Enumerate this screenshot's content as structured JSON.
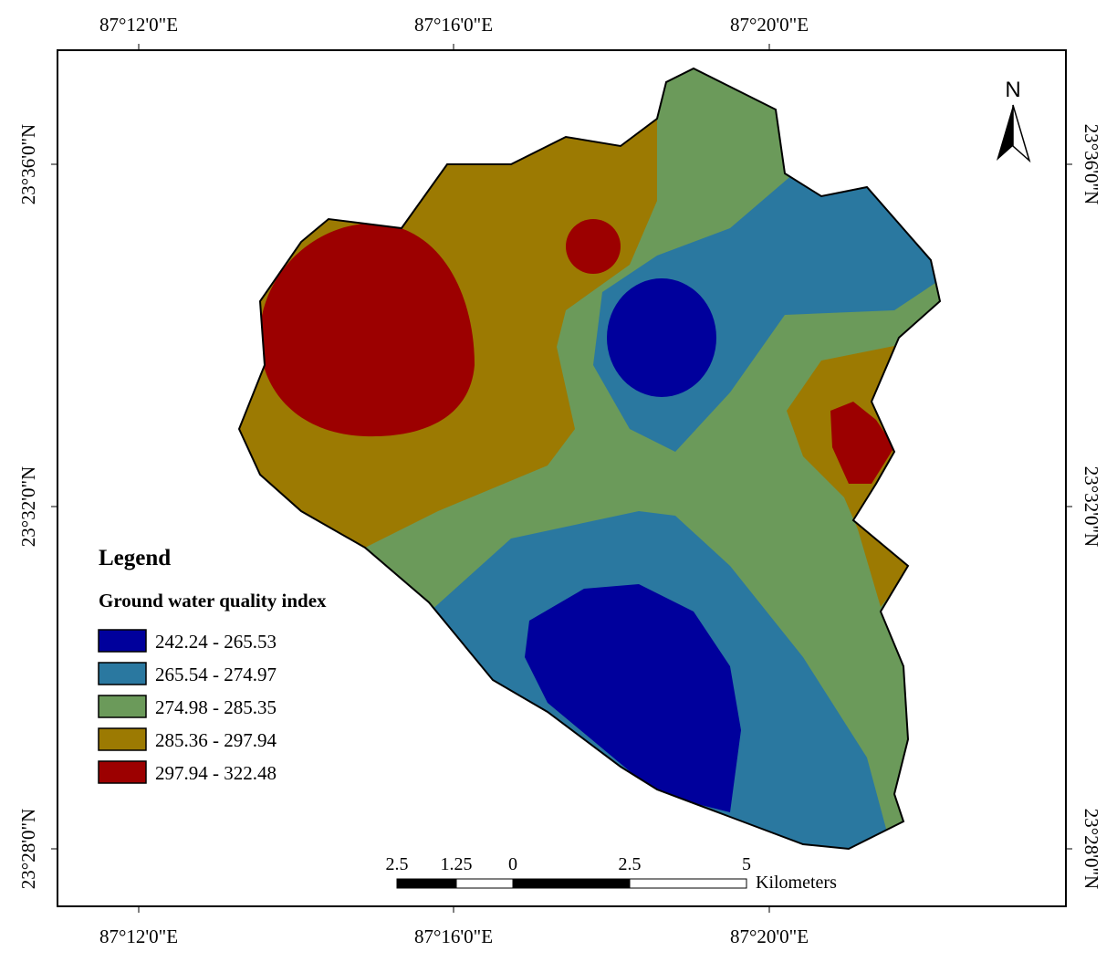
{
  "map": {
    "top_labels": [
      "87°12'0\"E",
      "87°16'0\"E",
      "87°20'0\"E"
    ],
    "bottom_labels": [
      "87°12'0\"E",
      "87°16'0\"E",
      "87°20'0\"E"
    ],
    "left_labels": [
      "23°36'0\"N",
      "23°32'0\"N",
      "23°28'0\"N"
    ],
    "right_labels": [
      "23°36'0\"N",
      "23°32'0\"N",
      "23°28'0\"N"
    ],
    "north": "N",
    "legend": {
      "title": "Legend",
      "subtitle": "Ground water quality index",
      "classes": [
        {
          "label": "242.24 - 265.53",
          "color": "#00009c"
        },
        {
          "label": "265.54 - 274.97",
          "color": "#2a78a0"
        },
        {
          "label": "274.98 - 285.35",
          "color": "#6b9a5a"
        },
        {
          "label": "285.36 - 297.94",
          "color": "#9c7a02"
        },
        {
          "label": "297.94 - 322.48",
          "color": "#9c0000"
        }
      ]
    },
    "scale_bar": {
      "labels": [
        "2.5",
        "1.25",
        "0",
        "2.5",
        "5"
      ],
      "unit": "Kilometers"
    }
  }
}
